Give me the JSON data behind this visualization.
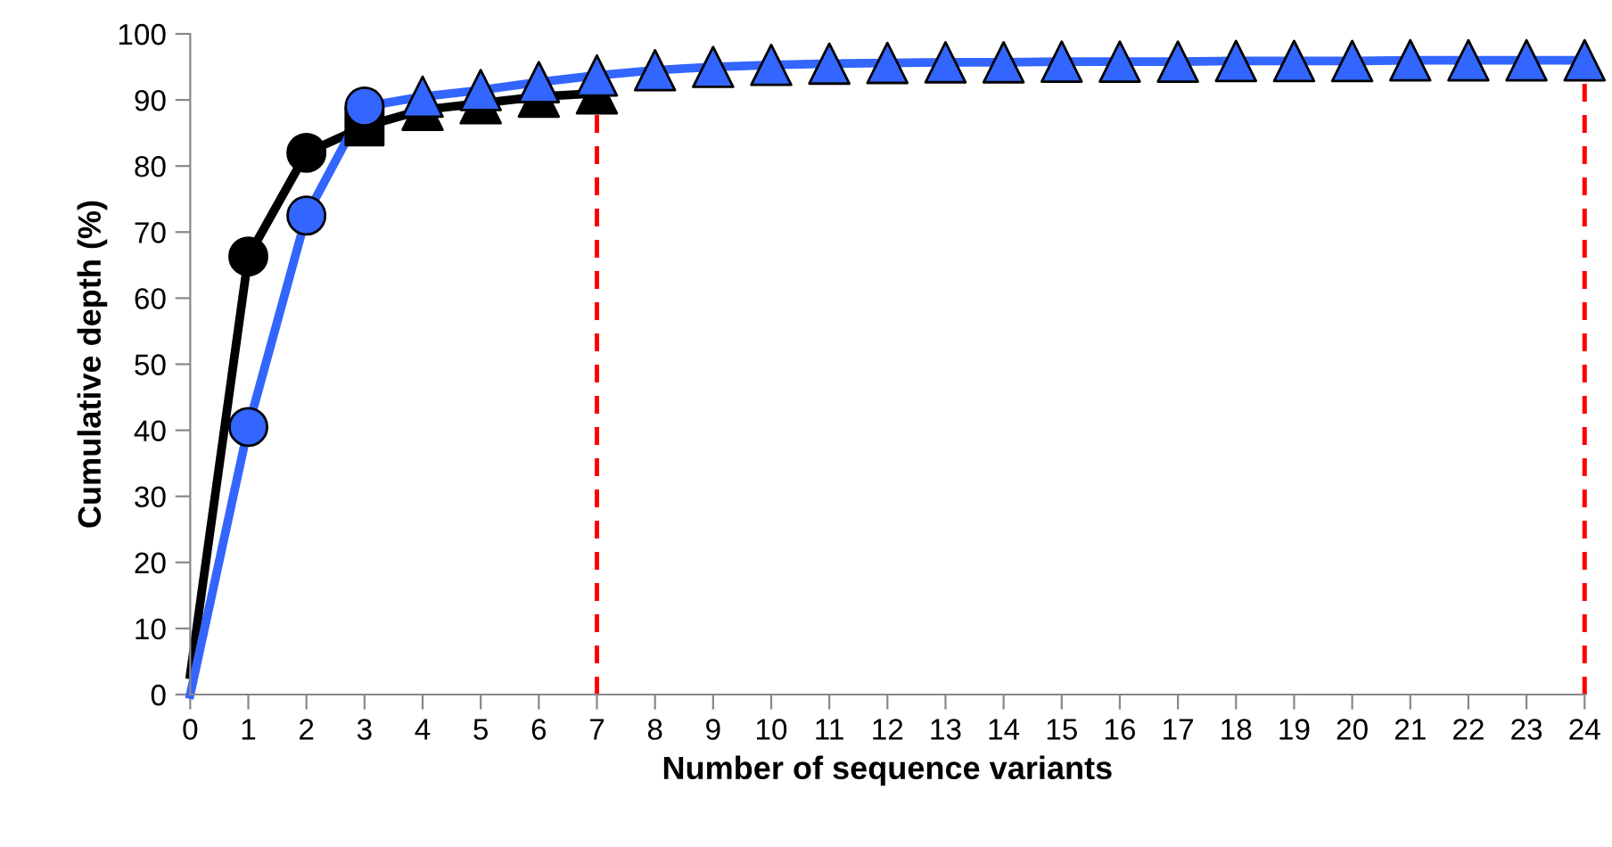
{
  "chart_data": {
    "type": "line",
    "xlabel": "Number of sequence variants",
    "ylabel": "Cumulative depth (%)",
    "xlim": [
      0,
      24
    ],
    "ylim": [
      0,
      100
    ],
    "xticks": [
      0,
      1,
      2,
      3,
      4,
      5,
      6,
      7,
      8,
      9,
      10,
      11,
      12,
      13,
      14,
      15,
      16,
      17,
      18,
      19,
      20,
      21,
      22,
      23,
      24
    ],
    "yticks": [
      0,
      10,
      20,
      30,
      40,
      50,
      60,
      70,
      80,
      90,
      100
    ],
    "grid": false,
    "series": [
      {
        "marker": "none",
        "color": "#000000",
        "x": [
          0,
          1,
          2,
          3,
          4,
          5,
          6,
          7
        ],
        "values": [
          3,
          66.3,
          82,
          86,
          88.5,
          89.5,
          90.5,
          91
        ]
      },
      {
        "marker": "none",
        "color": "#3366ff",
        "x": [
          0,
          1,
          2,
          3,
          4,
          5,
          6,
          7,
          8,
          9,
          10,
          11,
          12,
          13,
          14,
          15,
          16,
          17,
          18,
          19,
          20,
          21,
          22,
          23,
          24
        ],
        "values": [
          0,
          40.5,
          72.5,
          89,
          90.5,
          91.5,
          92.7,
          93.7,
          94.5,
          95,
          95.3,
          95.5,
          95.6,
          95.7,
          95.7,
          95.8,
          95.8,
          95.8,
          95.9,
          95.9,
          95.9,
          96,
          96,
          96,
          96
        ]
      },
      {
        "type": "scatter",
        "marker": "circle",
        "color": "#000000",
        "x": [
          1,
          2
        ],
        "values": [
          66.3,
          82
        ]
      },
      {
        "type": "scatter",
        "marker": "square",
        "color": "#000000",
        "x": [
          3
        ],
        "values": [
          86
        ]
      },
      {
        "type": "scatter",
        "marker": "triangle",
        "color": "#000000",
        "x": [
          4,
          5,
          6,
          7
        ],
        "values": [
          88.5,
          89.5,
          90.5,
          91
        ]
      },
      {
        "type": "scatter",
        "marker": "circle",
        "color": "#3366ff",
        "x": [
          1,
          2,
          3
        ],
        "values": [
          40.5,
          72.5,
          89
        ]
      },
      {
        "type": "scatter",
        "marker": "triangle",
        "color": "#3366ff",
        "x": [
          4,
          5,
          6,
          7,
          8,
          9,
          10,
          11,
          12,
          13,
          14,
          15,
          16,
          17,
          18,
          19,
          20,
          21,
          22,
          23,
          24
        ],
        "values": [
          90.5,
          91.5,
          92.7,
          93.7,
          94.5,
          95,
          95.3,
          95.5,
          95.6,
          95.7,
          95.7,
          95.8,
          95.8,
          95.8,
          95.9,
          95.9,
          95.9,
          96,
          96,
          96,
          96
        ]
      }
    ],
    "ref_lines": [
      {
        "axis": "x",
        "value": 7,
        "color": "#ff0000",
        "line_style": "dashed"
      },
      {
        "axis": "x",
        "value": 24,
        "color": "#ff0000",
        "line_style": "dashed"
      }
    ]
  }
}
